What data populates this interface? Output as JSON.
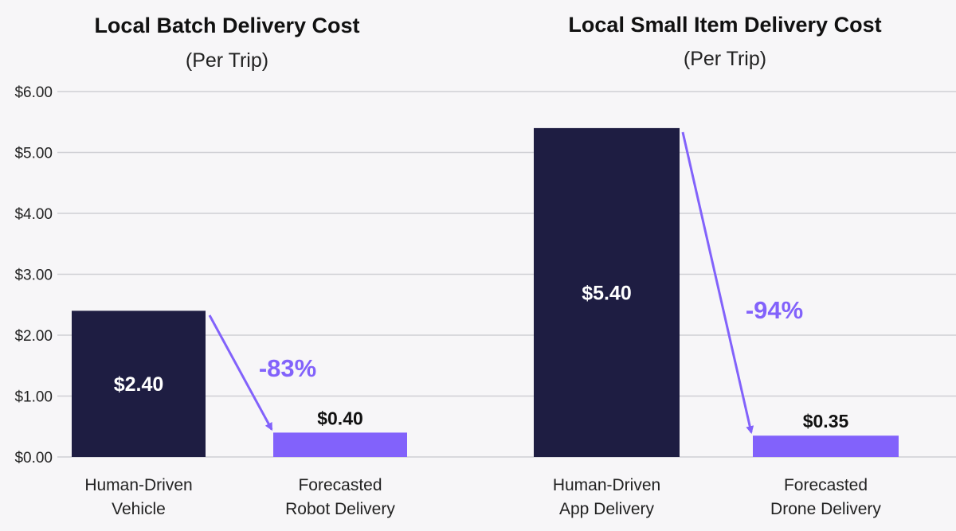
{
  "chart_data": {
    "type": "bar",
    "ylim": [
      0,
      6
    ],
    "y_ticks": [
      "$0.00",
      "$1.00",
      "$2.00",
      "$3.00",
      "$4.00",
      "$5.00",
      "$6.00"
    ],
    "grid": true,
    "colors": {
      "human": "#1e1d42",
      "forecast": "#8262fb",
      "arrow": "#8262fb",
      "grid": "#cfcfd4"
    },
    "groups": [
      {
        "title": "Local Batch Delivery Cost",
        "subtitle": "(Per Trip)",
        "bars": [
          {
            "category": [
              "Human-Driven",
              "Vehicle"
            ],
            "value": 2.4,
            "label": "$2.40",
            "color_key": "human",
            "label_position": "inside"
          },
          {
            "category": [
              "Forecasted",
              "Robot Delivery"
            ],
            "value": 0.4,
            "label": "$0.40",
            "color_key": "forecast",
            "label_position": "above"
          }
        ],
        "change": "-83%"
      },
      {
        "title": "Local Small Item Delivery Cost",
        "subtitle": "(Per Trip)",
        "bars": [
          {
            "category": [
              "Human-Driven",
              "App Delivery"
            ],
            "value": 5.4,
            "label": "$5.40",
            "color_key": "human",
            "label_position": "inside"
          },
          {
            "category": [
              "Forecasted",
              "Drone Delivery"
            ],
            "value": 0.35,
            "label": "$0.35",
            "color_key": "forecast",
            "label_position": "above"
          }
        ],
        "change": "-94%"
      }
    ]
  }
}
